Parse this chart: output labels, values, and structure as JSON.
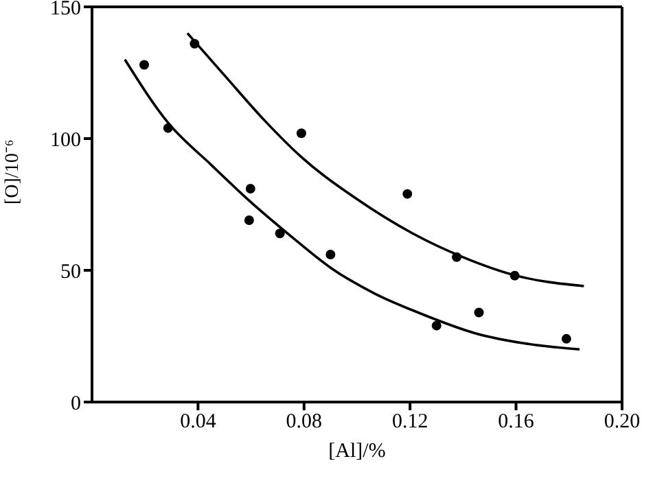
{
  "chart_data": {
    "type": "scatter",
    "xlabel": "[Al]/%",
    "ylabel": "[O]/10⁻⁶",
    "xlim": [
      0,
      0.2
    ],
    "ylim": [
      0,
      150
    ],
    "xticks": [
      0.04,
      0.08,
      0.12,
      0.16,
      {
        "value": 0.2,
        "label": "0.20"
      }
    ],
    "yticks": [
      0,
      50,
      100,
      150
    ],
    "grid": false,
    "series": [
      {
        "color": "#000000",
        "marker": "circle",
        "x": [
          0.0197,
          0.0287,
          0.0387,
          0.0598,
          0.0593,
          0.0709,
          0.079,
          0.09,
          0.119,
          0.1376,
          0.1595,
          0.13,
          0.146,
          0.179
        ],
        "values": [
          128,
          104,
          136,
          81,
          69,
          64,
          102,
          56,
          79,
          55,
          48,
          29,
          34,
          24
        ]
      },
      {
        "type": "line",
        "color": "#000000",
        "marker": "none",
        "line_style": "solid",
        "x": [
          0.036,
          0.05,
          0.065,
          0.079,
          0.1,
          0.121,
          0.14,
          0.16,
          0.1856
        ],
        "values": [
          140,
          124,
          107,
          93,
          77,
          64,
          55,
          48,
          44
        ]
      },
      {
        "type": "line",
        "color": "#000000",
        "marker": "none",
        "line_style": "solid",
        "x": [
          0.0124,
          0.0287,
          0.045,
          0.0598,
          0.075,
          0.09,
          0.107,
          0.123,
          0.145,
          0.165,
          0.184
        ],
        "values": [
          130,
          106,
          90,
          76,
          63,
          51,
          41,
          34,
          26,
          22,
          20
        ]
      }
    ]
  }
}
